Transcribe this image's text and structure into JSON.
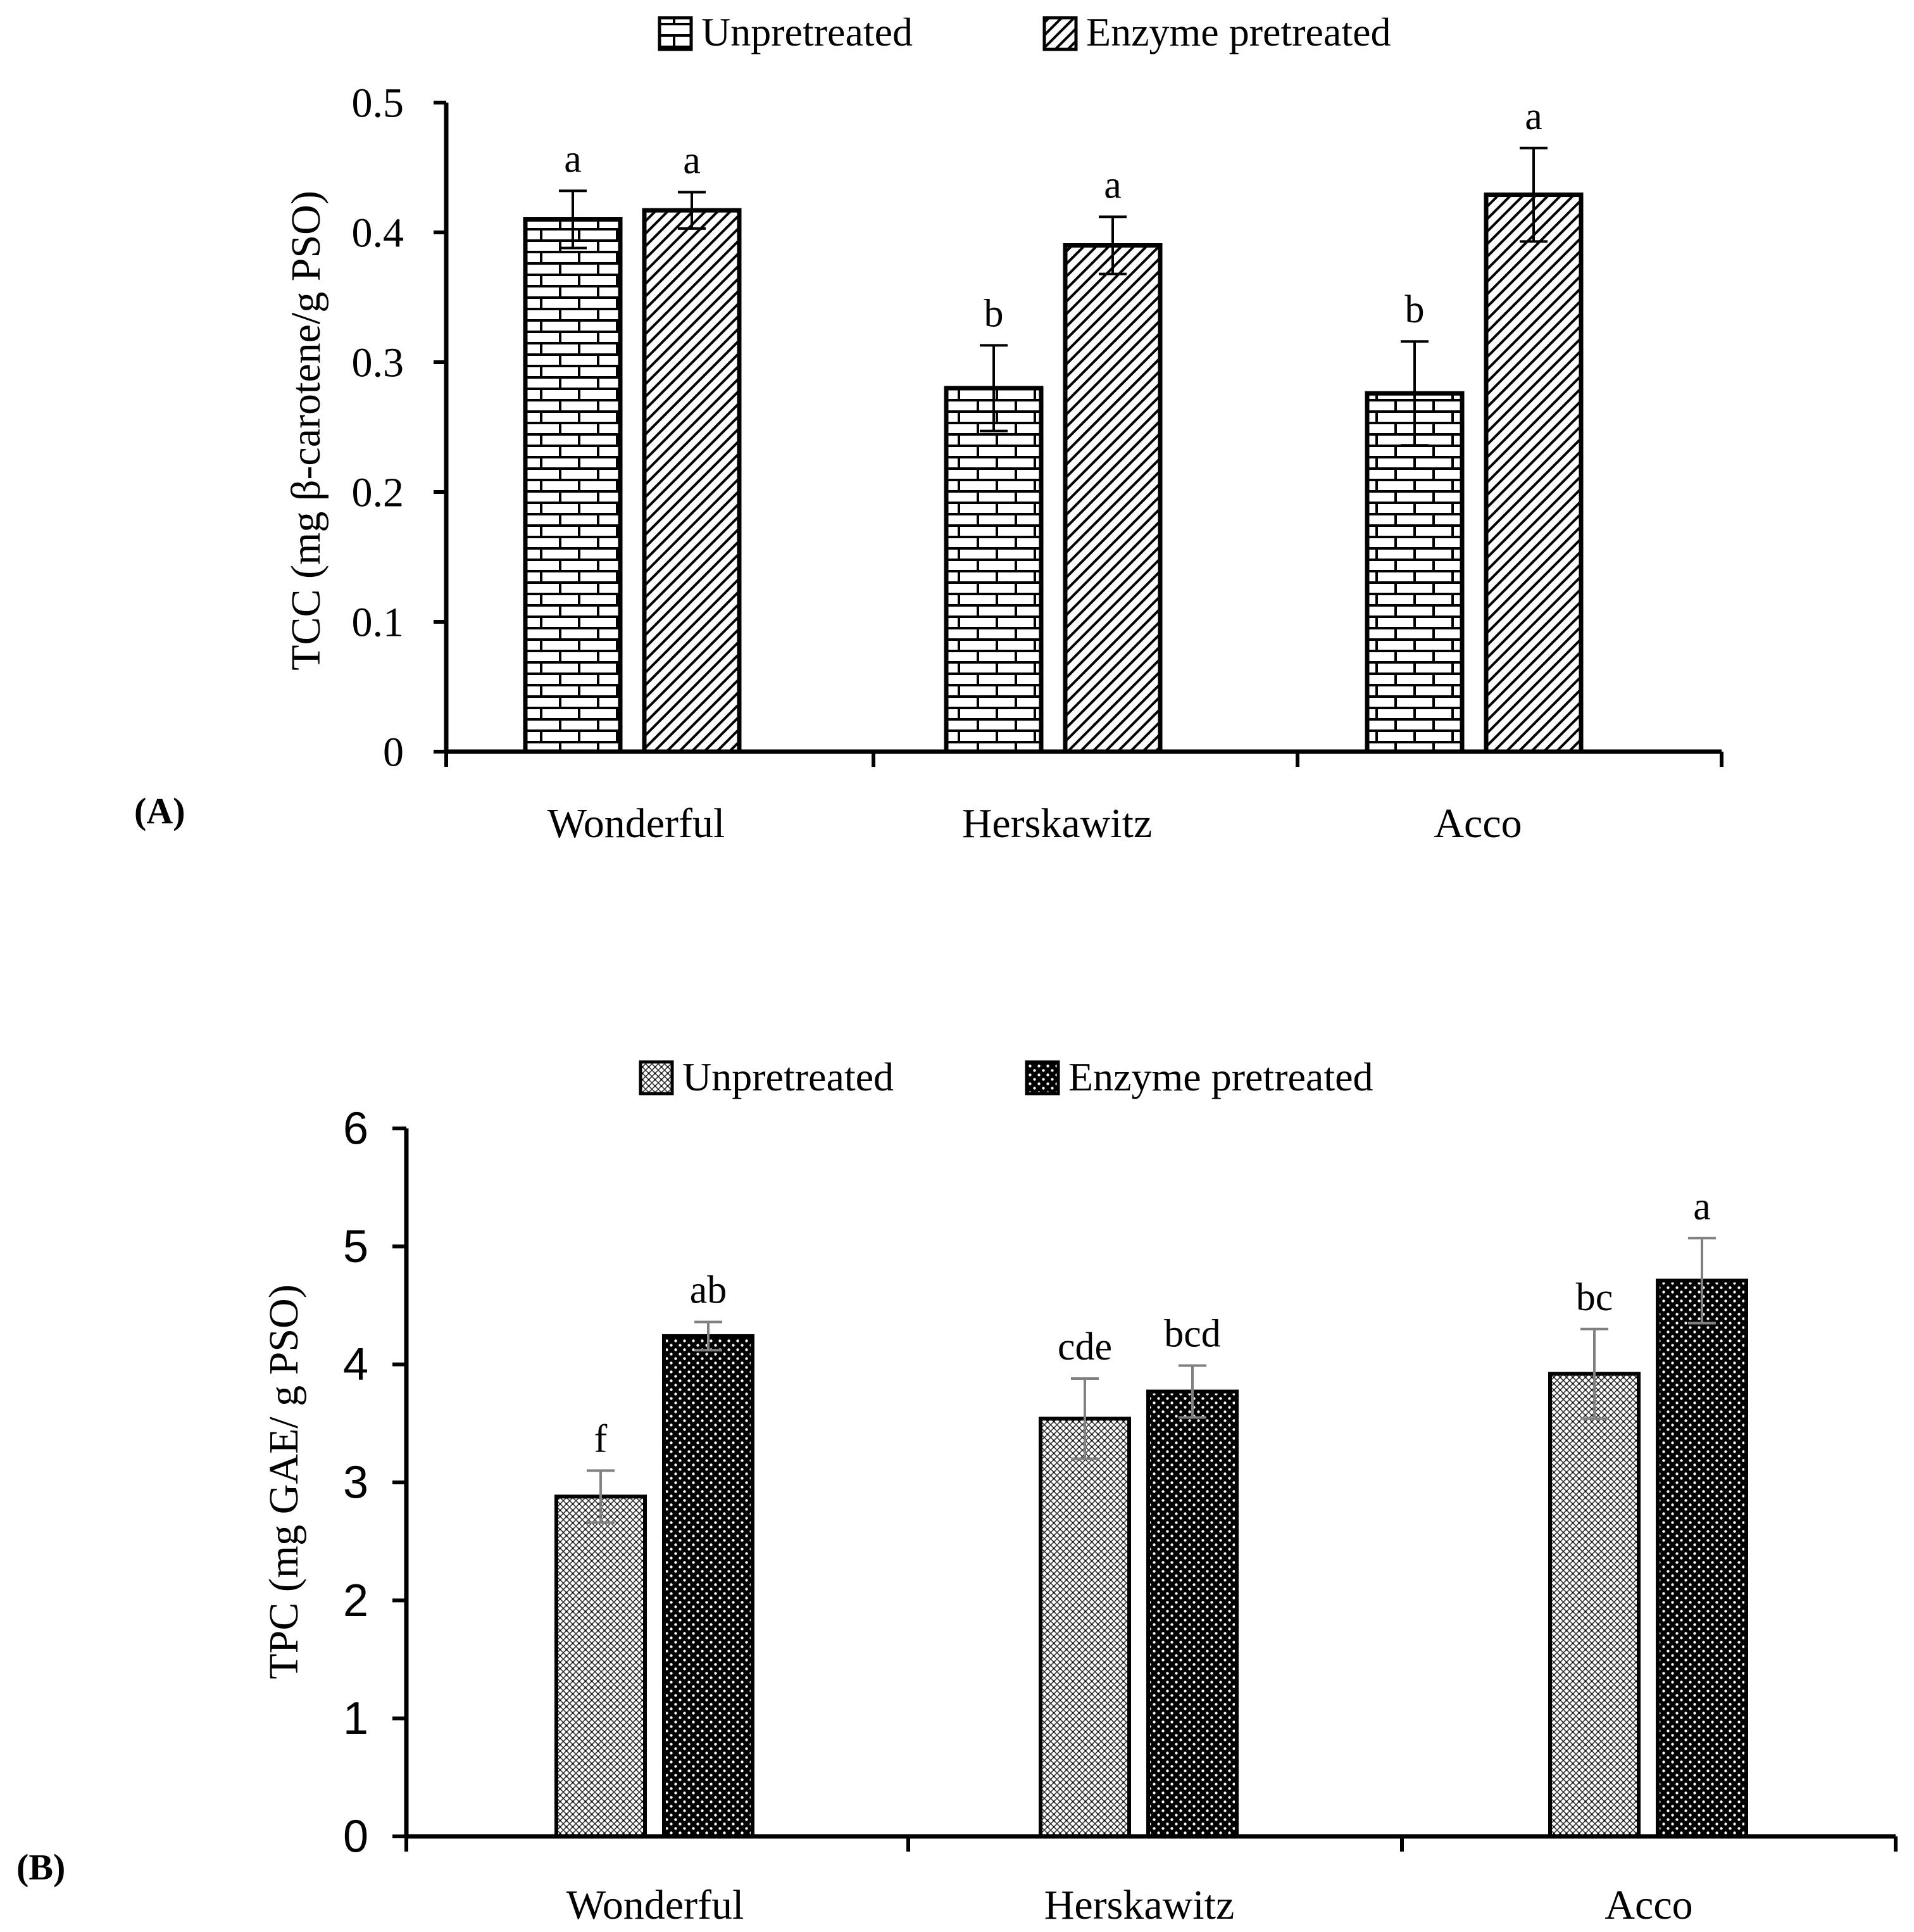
{
  "chart_data": [
    {
      "type": "bar",
      "panel_label": "(A)",
      "title": "",
      "categories": [
        "Wonderful",
        "Herskawitz",
        "Acco"
      ],
      "series": [
        {
          "name": "Unpretreated",
          "values": [
            0.41,
            0.28,
            0.276
          ],
          "errors": [
            0.022,
            0.033,
            0.04
          ],
          "letters": [
            "a",
            "b",
            "b"
          ]
        },
        {
          "name": "Enzyme pretreated",
          "values": [
            0.417,
            0.39,
            0.429
          ],
          "errors": [
            0.014,
            0.022,
            0.036
          ],
          "letters": [
            "a",
            "a",
            "a"
          ]
        }
      ],
      "xlabel": "",
      "ylabel": "TCC (mg β-carotene/g PSO)",
      "ylim": [
        0,
        0.5
      ],
      "yticks": [
        "0",
        "0.1",
        "0.2",
        "0.3",
        "0.4",
        "0.5"
      ],
      "grid": false,
      "legend_position": "top"
    },
    {
      "type": "bar",
      "panel_label": "(B)",
      "title": "",
      "categories": [
        "Wonderful",
        "Herskawitz",
        "Acco"
      ],
      "series": [
        {
          "name": "Unpretreated",
          "values": [
            2.88,
            3.54,
            3.92
          ],
          "errors": [
            0.22,
            0.34,
            0.38
          ],
          "letters": [
            "f",
            "cde",
            "bc"
          ]
        },
        {
          "name": "Enzyme pretreated",
          "values": [
            4.24,
            3.77,
            4.71
          ],
          "errors": [
            0.12,
            0.22,
            0.36
          ],
          "letters": [
            "ab",
            "bcd",
            "a"
          ]
        }
      ],
      "xlabel": "",
      "ylabel": "TPC (mg GAE/ g PSO)",
      "ylim": [
        0,
        6
      ],
      "yticks": [
        "0",
        "1",
        "2",
        "3",
        "4",
        "5",
        "6"
      ],
      "grid": false,
      "legend_position": "top"
    }
  ]
}
